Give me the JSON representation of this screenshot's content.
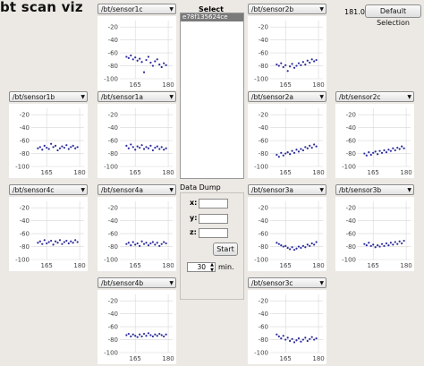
{
  "window": {
    "title": "bt scan viz"
  },
  "colors": {
    "plot_dot": "#2b2b9c",
    "grid": "#d7d7d7",
    "selection_bg": "#7a7a7a"
  },
  "beacons": {
    "title": "Select Beacons",
    "items": [
      "e78f135624ce"
    ]
  },
  "data_dump": {
    "title": "Data Dump",
    "x_label": "x:",
    "y_label": "y:",
    "z_label": "z:",
    "x_value": "",
    "y_value": "",
    "z_value": "",
    "start_label": "Start",
    "duration_value": "30",
    "duration_unit": "min."
  },
  "header": {
    "rate_value": "181.0",
    "default_button": "Default Selection"
  },
  "plots": [
    {
      "topic": "/bt/sensor1c",
      "y_ticks": [
        "-20",
        "-40",
        "-60",
        "-80",
        "-100"
      ],
      "x_ticks": [
        "165",
        "180"
      ]
    },
    {
      "topic": "/bt/sensor2b",
      "y_ticks": [
        "-20",
        "-40",
        "-60",
        "-80",
        "-100"
      ],
      "x_ticks": [
        "165",
        "180"
      ]
    },
    {
      "topic": "/bt/sensor1b",
      "y_ticks": [
        "-20",
        "-40",
        "-60",
        "-80",
        "-100"
      ],
      "x_ticks": [
        "165",
        "180"
      ]
    },
    {
      "topic": "/bt/sensor1a",
      "y_ticks": [
        "-20",
        "-40",
        "-60",
        "-80",
        "-100"
      ],
      "x_ticks": [
        "165",
        "180"
      ]
    },
    {
      "topic": "/bt/sensor2a",
      "y_ticks": [
        "-20",
        "-40",
        "-60",
        "-80",
        "-100"
      ],
      "x_ticks": [
        "165",
        "180"
      ]
    },
    {
      "topic": "/bt/sensor2c",
      "y_ticks": [
        "-20",
        "-40",
        "-60",
        "-80",
        "-100"
      ],
      "x_ticks": [
        "165",
        "180"
      ]
    },
    {
      "topic": "/bt/sensor4c",
      "y_ticks": [
        "-20",
        "-40",
        "-60",
        "-80",
        "-100"
      ],
      "x_ticks": [
        "165",
        "180"
      ]
    },
    {
      "topic": "/bt/sensor4a",
      "y_ticks": [
        "-20",
        "-40",
        "-60",
        "-80",
        "-100"
      ],
      "x_ticks": [
        "165",
        "180"
      ]
    },
    {
      "topic": "/bt/sensor3a",
      "y_ticks": [
        "-20",
        "-40",
        "-60",
        "-80",
        "-100"
      ],
      "x_ticks": [
        "165",
        "180"
      ]
    },
    {
      "topic": "/bt/sensor3b",
      "y_ticks": [
        "-20",
        "-40",
        "-60",
        "-80",
        "-100"
      ],
      "x_ticks": [
        "165",
        "180"
      ]
    },
    {
      "topic": "/bt/sensor4b",
      "y_ticks": [
        "-20",
        "-40",
        "-60",
        "-80",
        "-100"
      ],
      "x_ticks": [
        "165",
        "180"
      ]
    },
    {
      "topic": "/bt/sensor3c",
      "y_ticks": [
        "-20",
        "-40",
        "-60",
        "-80",
        "-100"
      ],
      "x_ticks": [
        "165",
        "180"
      ]
    }
  ],
  "chart_data": [
    {
      "type": "scatter",
      "title": "/bt/sensor1c",
      "ylim": [
        -100,
        -10
      ],
      "xlim": [
        158,
        182
      ],
      "x": [
        161,
        162,
        163,
        164,
        165,
        166,
        167,
        168,
        169,
        170,
        171,
        172,
        173,
        174,
        175,
        176,
        177,
        178,
        179
      ],
      "y": [
        -66,
        -68,
        -64,
        -70,
        -67,
        -72,
        -69,
        -74,
        -90,
        -71,
        -66,
        -75,
        -80,
        -73,
        -70,
        -78,
        -82,
        -76,
        -79
      ]
    },
    {
      "type": "scatter",
      "title": "/bt/sensor2b",
      "ylim": [
        -100,
        -10
      ],
      "xlim": [
        158,
        182
      ],
      "x": [
        161,
        162,
        163,
        164,
        165,
        166,
        167,
        168,
        169,
        170,
        171,
        172,
        173,
        174,
        175,
        176,
        177,
        178,
        179
      ],
      "y": [
        -78,
        -80,
        -76,
        -82,
        -79,
        -88,
        -81,
        -77,
        -83,
        -80,
        -76,
        -79,
        -74,
        -78,
        -72,
        -75,
        -70,
        -73,
        -71
      ]
    },
    {
      "type": "scatter",
      "title": "/bt/sensor1b",
      "ylim": [
        -100,
        -10
      ],
      "xlim": [
        158,
        182
      ],
      "x": [
        161,
        162,
        163,
        164,
        165,
        166,
        167,
        168,
        169,
        170,
        171,
        172,
        173,
        174,
        175,
        176,
        177,
        178,
        179
      ],
      "y": [
        -72,
        -70,
        -74,
        -68,
        -71,
        -73,
        -65,
        -70,
        -68,
        -75,
        -72,
        -69,
        -71,
        -67,
        -73,
        -70,
        -68,
        -72,
        -70
      ]
    },
    {
      "type": "scatter",
      "title": "/bt/sensor1a",
      "ylim": [
        -100,
        -10
      ],
      "xlim": [
        158,
        182
      ],
      "x": [
        161,
        162,
        163,
        164,
        165,
        166,
        167,
        168,
        169,
        170,
        171,
        172,
        173,
        174,
        175,
        176,
        177,
        178,
        179
      ],
      "y": [
        -68,
        -72,
        -66,
        -70,
        -74,
        -69,
        -71,
        -67,
        -73,
        -70,
        -72,
        -68,
        -75,
        -71,
        -69,
        -73,
        -70,
        -74,
        -72
      ]
    },
    {
      "type": "scatter",
      "title": "/bt/sensor2a",
      "ylim": [
        -100,
        -10
      ],
      "xlim": [
        158,
        182
      ],
      "x": [
        161,
        162,
        163,
        164,
        165,
        166,
        167,
        168,
        169,
        170,
        171,
        172,
        173,
        174,
        175,
        176,
        177,
        178,
        179
      ],
      "y": [
        -82,
        -85,
        -79,
        -83,
        -80,
        -78,
        -81,
        -76,
        -79,
        -74,
        -77,
        -73,
        -75,
        -70,
        -72,
        -68,
        -71,
        -66,
        -69
      ]
    },
    {
      "type": "scatter",
      "title": "/bt/sensor2c",
      "ylim": [
        -100,
        -10
      ],
      "xlim": [
        158,
        182
      ],
      "x": [
        161,
        162,
        163,
        164,
        165,
        166,
        167,
        168,
        169,
        170,
        171,
        172,
        173,
        174,
        175,
        176,
        177,
        178,
        179
      ],
      "y": [
        -80,
        -83,
        -78,
        -82,
        -79,
        -77,
        -81,
        -76,
        -79,
        -75,
        -78,
        -74,
        -76,
        -72,
        -75,
        -71,
        -73,
        -69,
        -72
      ]
    },
    {
      "type": "scatter",
      "title": "/bt/sensor4c",
      "ylim": [
        -100,
        -10
      ],
      "xlim": [
        158,
        182
      ],
      "x": [
        161,
        162,
        163,
        164,
        165,
        166,
        167,
        168,
        169,
        170,
        171,
        172,
        173,
        174,
        175,
        176,
        177,
        178,
        179
      ],
      "y": [
        -74,
        -72,
        -76,
        -70,
        -75,
        -73,
        -71,
        -77,
        -72,
        -74,
        -70,
        -76,
        -73,
        -71,
        -75,
        -72,
        -74,
        -70,
        -73
      ]
    },
    {
      "type": "scatter",
      "title": "/bt/sensor4a",
      "ylim": [
        -100,
        -10
      ],
      "xlim": [
        158,
        182
      ],
      "x": [
        161,
        162,
        163,
        164,
        165,
        166,
        167,
        168,
        169,
        170,
        171,
        172,
        173,
        174,
        175,
        176,
        177,
        178,
        179
      ],
      "y": [
        -76,
        -74,
        -78,
        -73,
        -77,
        -75,
        -79,
        -72,
        -76,
        -74,
        -78,
        -75,
        -73,
        -77,
        -74,
        -79,
        -76,
        -73,
        -75
      ]
    },
    {
      "type": "scatter",
      "title": "/bt/sensor3a",
      "ylim": [
        -100,
        -10
      ],
      "xlim": [
        158,
        182
      ],
      "x": [
        161,
        162,
        163,
        164,
        165,
        166,
        167,
        168,
        169,
        170,
        171,
        172,
        173,
        174,
        175,
        176,
        177,
        178,
        179
      ],
      "y": [
        -74,
        -76,
        -78,
        -80,
        -79,
        -82,
        -84,
        -81,
        -85,
        -83,
        -80,
        -82,
        -79,
        -81,
        -77,
        -79,
        -75,
        -77,
        -73
      ]
    },
    {
      "type": "scatter",
      "title": "/bt/sensor3b",
      "ylim": [
        -100,
        -10
      ],
      "xlim": [
        158,
        182
      ],
      "x": [
        161,
        162,
        163,
        164,
        165,
        166,
        167,
        168,
        169,
        170,
        171,
        172,
        173,
        174,
        175,
        176,
        177,
        178,
        179
      ],
      "y": [
        -76,
        -78,
        -74,
        -79,
        -77,
        -81,
        -78,
        -80,
        -76,
        -79,
        -75,
        -78,
        -74,
        -77,
        -73,
        -76,
        -72,
        -75,
        -71
      ]
    },
    {
      "type": "scatter",
      "title": "/bt/sensor4b",
      "ylim": [
        -100,
        -10
      ],
      "xlim": [
        158,
        182
      ],
      "x": [
        161,
        162,
        163,
        164,
        165,
        166,
        167,
        168,
        169,
        170,
        171,
        172,
        173,
        174,
        175,
        176,
        177,
        178,
        179
      ],
      "y": [
        -73,
        -71,
        -75,
        -72,
        -74,
        -76,
        -72,
        -75,
        -71,
        -74,
        -70,
        -73,
        -75,
        -72,
        -74,
        -71,
        -73,
        -75,
        -72
      ]
    },
    {
      "type": "scatter",
      "title": "/bt/sensor3c",
      "ylim": [
        -100,
        -10
      ],
      "xlim": [
        158,
        182
      ],
      "x": [
        161,
        162,
        163,
        164,
        165,
        166,
        167,
        168,
        169,
        170,
        171,
        172,
        173,
        174,
        175,
        176,
        177,
        178,
        179
      ],
      "y": [
        -72,
        -75,
        -78,
        -74,
        -80,
        -77,
        -82,
        -79,
        -84,
        -81,
        -78,
        -83,
        -80,
        -77,
        -82,
        -79,
        -76,
        -80,
        -78
      ]
    }
  ]
}
